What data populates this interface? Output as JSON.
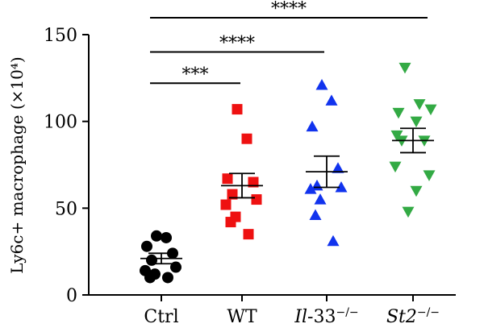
{
  "chart_data": {
    "type": "scatter",
    "ylabel": "Ly6c+ macrophage (×10⁴)",
    "ylim": [
      0,
      150
    ],
    "yticks": [
      0,
      50,
      100,
      150
    ],
    "groups": [
      {
        "label": "Ctrl",
        "label_parts": [
          {
            "text": "Ctrl",
            "italic": false
          }
        ],
        "color": "#000000",
        "marker": "circle",
        "mean": 21,
        "sem": 3,
        "values": [
          34,
          33,
          28,
          24,
          20,
          16,
          14,
          12,
          10,
          10
        ]
      },
      {
        "label": "WT",
        "label_parts": [
          {
            "text": "WT",
            "italic": false
          }
        ],
        "color": "#ee1111",
        "marker": "square",
        "mean": 63,
        "sem": 7,
        "values": [
          107,
          90,
          67,
          65,
          58,
          55,
          52,
          45,
          42,
          35
        ]
      },
      {
        "label": "Il-33−/−",
        "label_parts": [
          {
            "text": "Il",
            "italic": true
          },
          {
            "text": "-33",
            "italic": false
          },
          {
            "text": "−/−",
            "italic": false,
            "sup": true
          }
        ],
        "color": "#1133ee",
        "marker": "triangle-up",
        "mean": 71,
        "sem": 9,
        "values": [
          121,
          112,
          97,
          73,
          63,
          62,
          61,
          55,
          46,
          31
        ]
      },
      {
        "label": "St2−/−",
        "label_parts": [
          {
            "text": "St2",
            "italic": true
          },
          {
            "text": "−/−",
            "italic": false,
            "sup": true
          }
        ],
        "color": "#33aa44",
        "marker": "triangle-down",
        "mean": 89,
        "sem": 7,
        "values": [
          131,
          110,
          107,
          105,
          100,
          92,
          89,
          89,
          74,
          69,
          60,
          48
        ]
      }
    ],
    "significance": [
      {
        "from": 0,
        "to": 1,
        "y": 122,
        "label": "***"
      },
      {
        "from": 0,
        "to": 2,
        "y": 140,
        "label": "****"
      },
      {
        "from": 0,
        "to": 3,
        "y": 160,
        "label": "****"
      }
    ]
  }
}
